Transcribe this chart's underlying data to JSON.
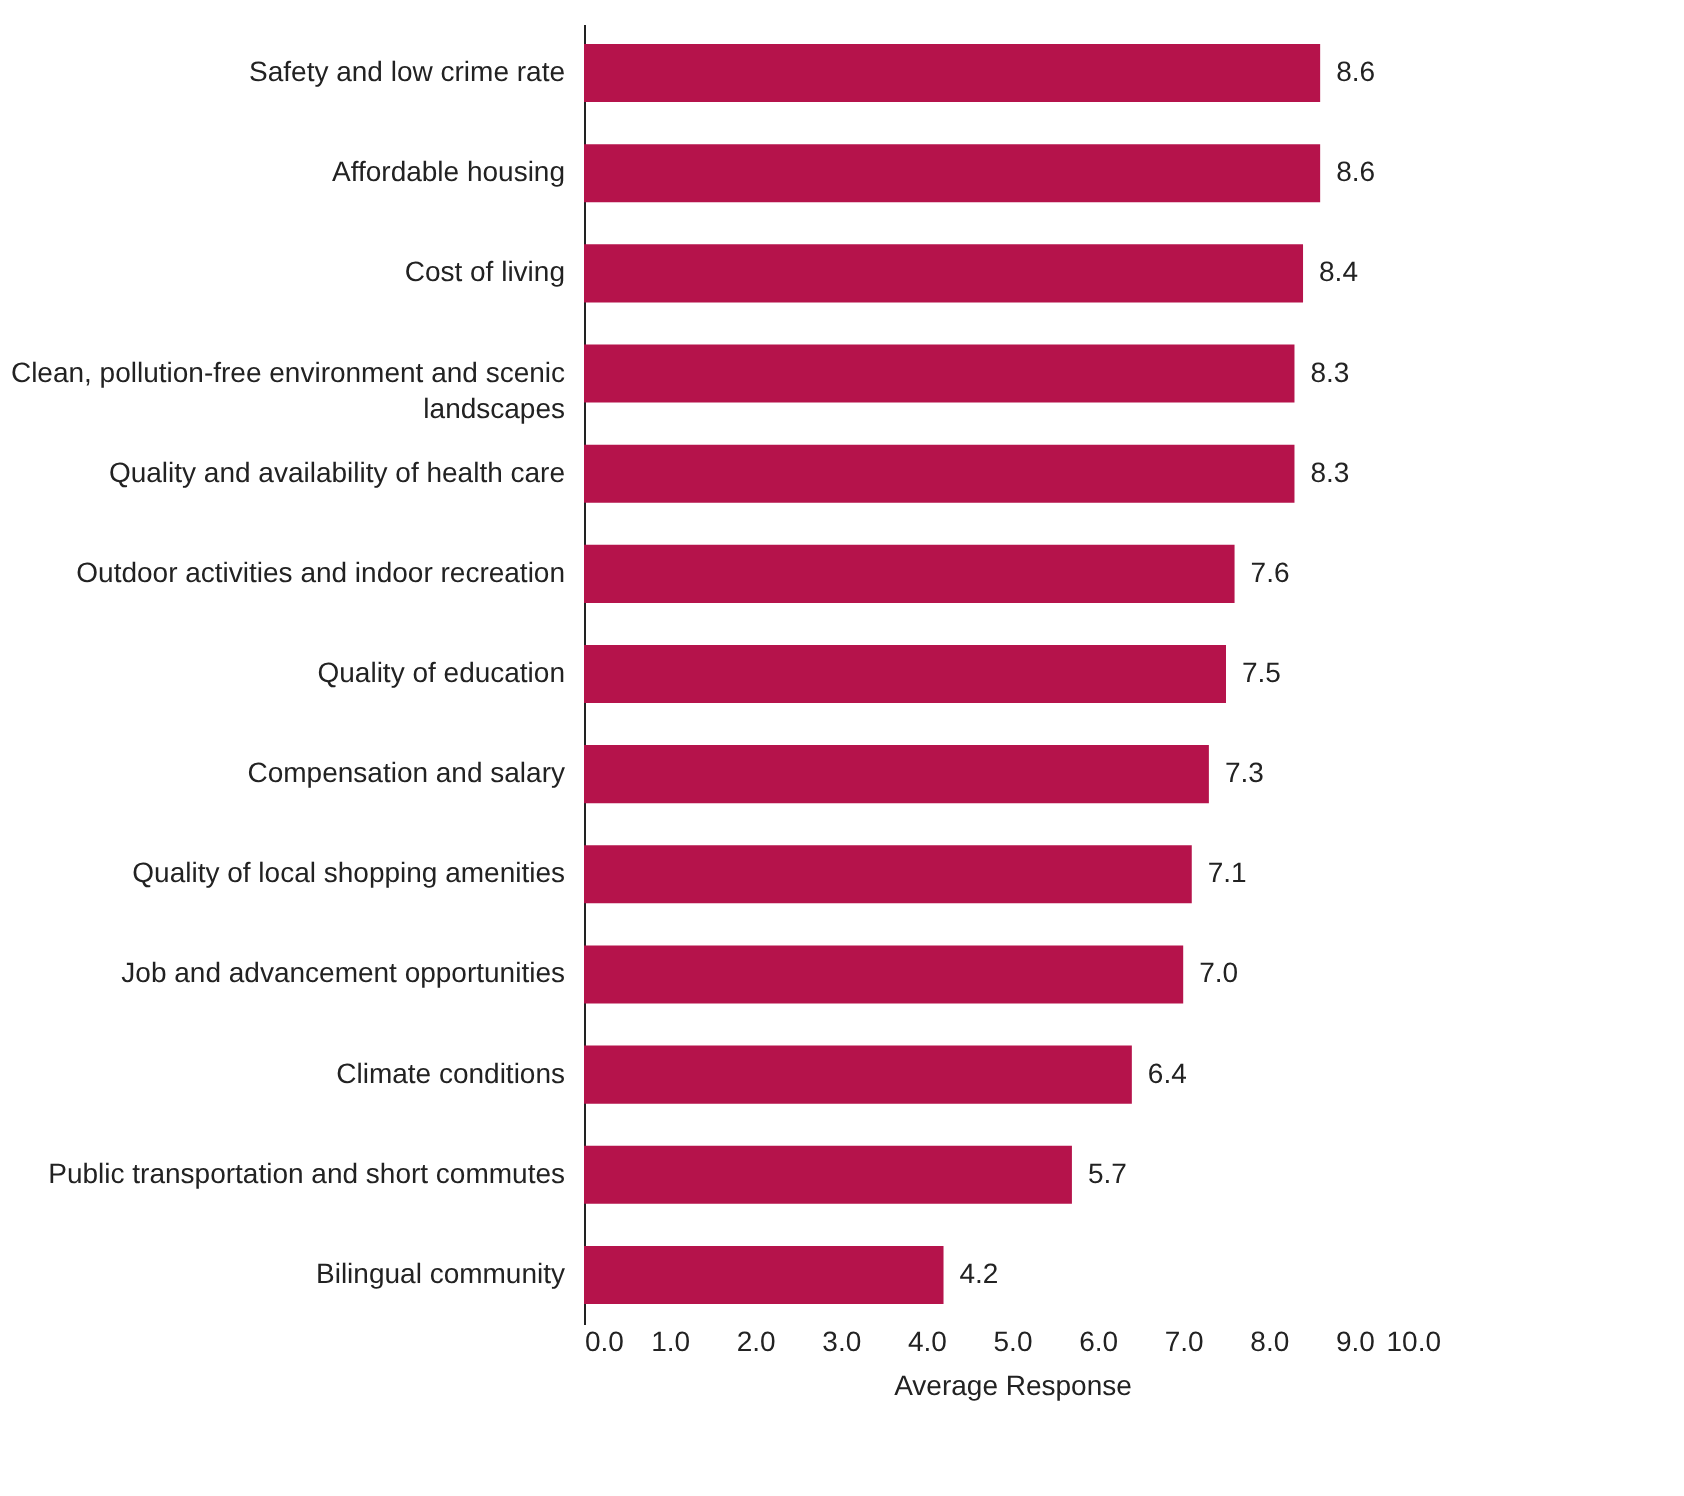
{
  "chart_data": {
    "type": "bar",
    "orientation": "horizontal",
    "xlabel": "Average Response",
    "categories": [
      "Safety and low crime rate",
      "Affordable housing",
      "Cost of living",
      "Clean, pollution-free environment and scenic landscapes",
      "Quality and availability of health care",
      "Outdoor activities and indoor recreation",
      "Quality of education",
      "Compensation and salary",
      "Quality of local shopping amenities",
      "Job and advancement opportunities",
      "Climate conditions",
      "Public transportation and short commutes",
      "Bilingual community"
    ],
    "values": [
      8.6,
      8.6,
      8.4,
      8.3,
      8.3,
      7.6,
      7.5,
      7.3,
      7.1,
      7.0,
      6.4,
      5.7,
      4.2
    ],
    "value_labels": [
      "8.6",
      "8.6",
      "8.4",
      "8.3",
      "8.3",
      "7.6",
      "7.5",
      "7.3",
      "7.1",
      "7.0",
      "6.4",
      "5.7",
      "4.2"
    ],
    "color": "#b5134b",
    "xlim": [
      0,
      10
    ],
    "xticks": [
      {
        "value": 0,
        "label": "0.0"
      },
      {
        "value": 1,
        "label": "1.0"
      },
      {
        "value": 2,
        "label": "2.0"
      },
      {
        "value": 3,
        "label": "3.0"
      },
      {
        "value": 4,
        "label": "4.0"
      },
      {
        "value": 5,
        "label": "5.0"
      },
      {
        "value": 6,
        "label": "6.0"
      },
      {
        "value": 7,
        "label": "7.0"
      },
      {
        "value": 8,
        "label": "8.0"
      },
      {
        "value": 9,
        "label": "9.0"
      },
      {
        "value": 10,
        "label": "10.0"
      }
    ],
    "grid": false
  }
}
